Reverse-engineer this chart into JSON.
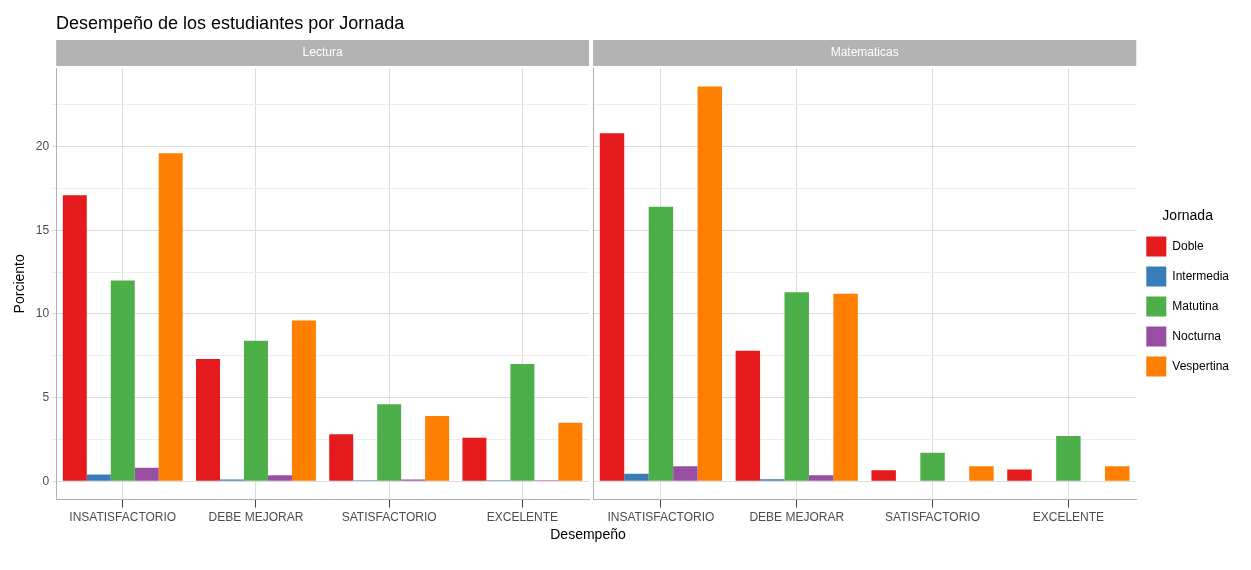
{
  "chart_data": [
    {
      "type": "bar",
      "title": "Desempeño de los estudiantes por Jornada",
      "subtitle": "Lectura",
      "xlabel": "Desempeño",
      "ylabel": "Porciento",
      "categories": [
        "INSATISFACTORIO",
        "DEBE MEJORAR",
        "SATISFACTORIO",
        "EXCELENTE"
      ],
      "series": [
        {
          "color": "#e41a1c",
          "values": [
            17.1,
            7.3,
            2.8,
            2.6
          ]
        },
        {
          "color": "#377eb8",
          "values": [
            0.4,
            0.1,
            0.05,
            0.05
          ]
        },
        {
          "color": "#4daf4a",
          "values": [
            12.0,
            8.4,
            4.6,
            7.0
          ]
        },
        {
          "color": "#984ea3",
          "values": [
            0.8,
            0.35,
            0.1,
            0.05
          ]
        },
        {
          "color": "#ff7f00",
          "values": [
            19.6,
            9.6,
            3.9,
            3.5
          ]
        }
      ],
      "ylim": [
        -1.1,
        24.7
      ],
      "yticks": [
        0,
        {
          "value": 2.5,
          "label": null
        },
        5,
        {
          "value": 7.5,
          "label": null
        },
        10,
        {
          "value": 12.5,
          "label": null
        },
        15,
        {
          "value": 17.5,
          "label": null
        },
        20,
        {
          "value": 22.5,
          "label": null
        }
      ],
      "grid": true,
      "legend": false
    },
    {
      "type": "bar",
      "subtitle": "Matematicas",
      "legend_title": "Jornada",
      "categories": [
        "INSATISFACTORIO",
        "DEBE MEJORAR",
        "SATISFACTORIO",
        "EXCELENTE"
      ],
      "series": [
        {
          "name": "Doble",
          "color": "#e41a1c",
          "values": [
            20.8,
            7.8,
            0.65,
            0.7
          ]
        },
        {
          "name": "Intermedia",
          "color": "#377eb8",
          "values": [
            0.45,
            0.12,
            0,
            0
          ]
        },
        {
          "name": "Matutina",
          "color": "#4daf4a",
          "values": [
            16.4,
            11.3,
            1.7,
            2.7
          ]
        },
        {
          "name": "Nocturna",
          "color": "#984ea3",
          "values": [
            0.9,
            0.35,
            0,
            0
          ]
        },
        {
          "name": "Vespertina",
          "color": "#ff7f00",
          "values": [
            23.6,
            11.2,
            0.9,
            0.9
          ]
        }
      ],
      "ylim": [
        -1.1,
        24.7
      ],
      "yticks": [
        0,
        {
          "value": 2.5,
          "label": null
        },
        5,
        {
          "value": 7.5,
          "label": null
        },
        10,
        {
          "value": 12.5,
          "label": null
        },
        15,
        {
          "value": 17.5,
          "label": null
        },
        20,
        {
          "value": 22.5,
          "label": null
        }
      ],
      "tick_labels": "x",
      "grid": true,
      "legend": "right"
    }
  ]
}
